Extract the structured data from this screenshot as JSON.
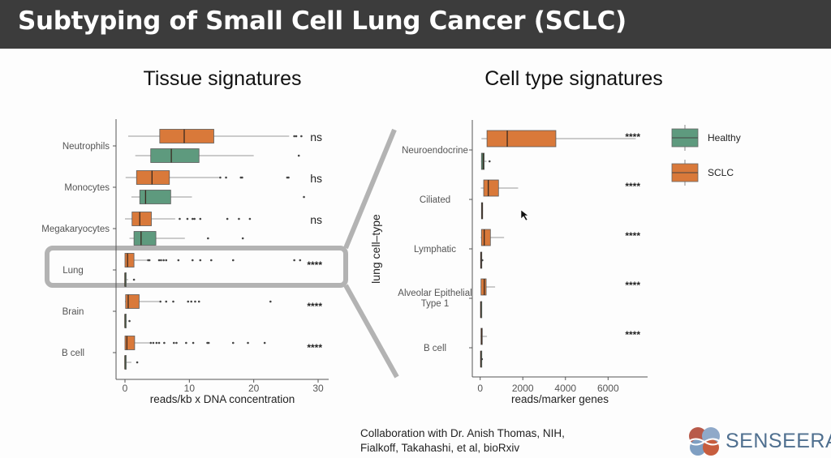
{
  "slide": {
    "title": "Subtyping of Small Cell Lung Cancer (SCLC)",
    "credit_line1": "Collaboration with Dr. Anish Thomas, NIH,",
    "credit_line2": "Fialkoff, Takahashi, et al, bioRxiv",
    "logo_text": "SENSEERA"
  },
  "colors": {
    "SCLC": "#d9793a",
    "Healthy": "#5e9a7e",
    "connector": "#b3b3b3",
    "header": "#3c3c3c"
  },
  "legend": {
    "items": [
      "Healthy",
      "SCLC"
    ],
    "placement": "top-right"
  },
  "chart_data": [
    {
      "type": "boxplot",
      "orientation": "horizontal",
      "title": "Tissue signatures",
      "xlabel": "reads/kb x DNA concentration",
      "ylabel": "",
      "xlim": [
        -1,
        31
      ],
      "xticks": [
        0,
        10,
        20,
        30
      ],
      "highlighted_category": "Lung",
      "categories": [
        "Neutrophils",
        "Monocytes",
        "Megakaryocytes",
        "Lung",
        "Brain",
        "B cell"
      ],
      "significance": [
        "ns",
        "hs",
        "ns",
        "****",
        "****",
        "****"
      ],
      "series": [
        {
          "name": "SCLC",
          "boxes": [
            {
              "whislo": 0.5,
              "q1": 5.4,
              "med": 9.2,
              "q3": 13.8,
              "whishi": 25.5,
              "fliers": [
                26.3,
                26.6,
                27.4
              ]
            },
            {
              "whislo": 0.1,
              "q1": 1.8,
              "med": 4.2,
              "q3": 6.9,
              "whishi": 14.6,
              "fliers": [
                14.8,
                15.7,
                18.0,
                18.2,
                25.2,
                25.4
              ]
            },
            {
              "whislo": 0.0,
              "q1": 1.1,
              "med": 2.3,
              "q3": 4.1,
              "whishi": 7.8,
              "fliers": [
                8.5,
                9.7,
                10.5,
                10.8,
                11.7,
                15.9,
                17.7,
                19.4
              ]
            },
            {
              "whislo": 0.0,
              "q1": 0.0,
              "med": 0.4,
              "q3": 1.4,
              "whishi": 3.5,
              "fliers": [
                3.6,
                3.8,
                5.3,
                5.6,
                6.0,
                6.4,
                8.3,
                10.5,
                11.7,
                13.4,
                16.8,
                26.3,
                27.2
              ]
            },
            {
              "whislo": 0.0,
              "q1": 0.1,
              "med": 0.5,
              "q3": 2.2,
              "whishi": 5.3,
              "fliers": [
                5.5,
                6.4,
                7.5,
                9.8,
                10.3,
                10.9,
                11.5,
                22.6
              ]
            },
            {
              "whislo": 0.0,
              "q1": 0.0,
              "med": 0.3,
              "q3": 1.5,
              "whishi": 3.8,
              "fliers": [
                4.0,
                4.4,
                4.9,
                5.3,
                6.1,
                7.6,
                8.0,
                9.5,
                10.6,
                12.8,
                13.0,
                16.8,
                19.1,
                21.7
              ]
            }
          ]
        },
        {
          "name": "Healthy",
          "boxes": [
            {
              "whislo": 1.6,
              "q1": 4.0,
              "med": 7.2,
              "q3": 11.5,
              "whishi": 20.0,
              "fliers": [
                27.0
              ]
            },
            {
              "whislo": 1.0,
              "q1": 2.3,
              "med": 3.2,
              "q3": 7.1,
              "whishi": 10.4,
              "fliers": [
                27.8
              ]
            },
            {
              "whislo": 0.7,
              "q1": 1.4,
              "med": 2.5,
              "q3": 4.8,
              "whishi": 9.3,
              "fliers": [
                12.9,
                18.3
              ]
            },
            {
              "whislo": 0.0,
              "q1": 0.0,
              "med": 0.0,
              "q3": 0.1,
              "whishi": 0.5,
              "fliers": [
                1.4
              ]
            },
            {
              "whislo": 0.0,
              "q1": 0.0,
              "med": 0.0,
              "q3": 0.05,
              "whishi": 0.3,
              "fliers": [
                0.7
              ]
            },
            {
              "whislo": 0.0,
              "q1": 0.0,
              "med": 0.0,
              "q3": 0.1,
              "whishi": 1.0,
              "fliers": [
                1.9
              ]
            }
          ]
        }
      ]
    },
    {
      "type": "boxplot",
      "orientation": "horizontal",
      "title": "Cell type signatures",
      "xlabel": "reads/marker genes",
      "ylabel": "lung cell–type",
      "xlim": [
        -400,
        7800
      ],
      "xticks": [
        0,
        2000,
        4000,
        6000
      ],
      "categories": [
        "Neuroendocrine",
        "Ciliated",
        "Lymphatic",
        "Alveolar Epithelial\nType 1",
        "B cell"
      ],
      "significance": [
        "****",
        "****",
        "****",
        "****",
        "****"
      ],
      "series": [
        {
          "name": "SCLC",
          "boxes": [
            {
              "whislo": 60,
              "q1": 320,
              "med": 1270,
              "q3": 3550,
              "whishi": 7300,
              "fliers": []
            },
            {
              "whislo": 30,
              "q1": 165,
              "med": 380,
              "q3": 860,
              "whishi": 1780,
              "fliers": []
            },
            {
              "whislo": 20,
              "q1": 60,
              "med": 190,
              "q3": 480,
              "whishi": 1120,
              "fliers": []
            },
            {
              "whislo": 20,
              "q1": 40,
              "med": 190,
              "q3": 280,
              "whishi": 700,
              "fliers": []
            },
            {
              "whislo": 20,
              "q1": 40,
              "med": 60,
              "q3": 100,
              "whishi": 320,
              "fliers": []
            }
          ]
        },
        {
          "name": "Healthy",
          "boxes": [
            {
              "whislo": 40,
              "q1": 60,
              "med": 140,
              "q3": 190,
              "whishi": 300,
              "fliers": [
                440
              ]
            },
            {
              "whislo": 50,
              "q1": 60,
              "med": 90,
              "q3": 110,
              "whishi": 130,
              "fliers": []
            },
            {
              "whislo": 10,
              "q1": 20,
              "med": 40,
              "q3": 60,
              "whishi": 60,
              "fliers": [
                100
              ]
            },
            {
              "whislo": 10,
              "q1": 20,
              "med": 30,
              "q3": 40,
              "whishi": 40,
              "fliers": []
            },
            {
              "whislo": 10,
              "q1": 20,
              "med": 30,
              "q3": 40,
              "whishi": 40,
              "fliers": [
                80
              ]
            }
          ]
        }
      ]
    }
  ]
}
